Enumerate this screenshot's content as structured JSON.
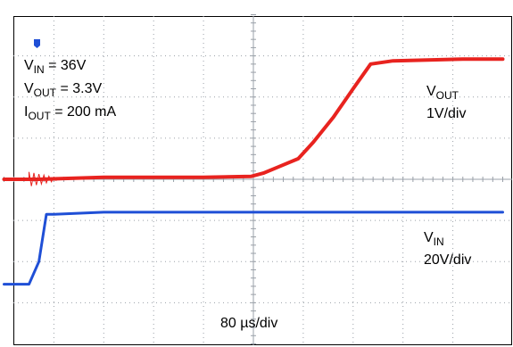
{
  "conditions": {
    "vin": {
      "sym": "V",
      "sub": "IN",
      "rest": " = 36V"
    },
    "vout": {
      "sym": "V",
      "sub": "OUT",
      "rest": " = 3.3V"
    },
    "iout": {
      "sym": "I",
      "sub": "OUT",
      "rest": " = 200 mA"
    }
  },
  "channels": {
    "vout": {
      "sym": "V",
      "sub": "OUT",
      "scale": "1V/div"
    },
    "vin": {
      "sym": "V",
      "sub": "IN",
      "scale": "20V/div"
    }
  },
  "timebase": "80 µs/div",
  "chart_data": {
    "type": "line",
    "grid": true,
    "x_unit": "div",
    "xlim": [
      -5,
      5
    ],
    "y_unit": "div",
    "ylim": [
      -4,
      4
    ],
    "series": [
      {
        "name": "VOUT",
        "color": "#e8231f",
        "scale": "1V/div",
        "x": [
          -5.0,
          -4.3,
          -3.0,
          -1.0,
          -0.05,
          0.2,
          0.5,
          0.9,
          1.2,
          1.6,
          2.0,
          2.35,
          2.8,
          3.5,
          4.2,
          5.0
        ],
        "y": [
          0.0,
          0.0,
          0.05,
          0.05,
          0.07,
          0.15,
          0.3,
          0.5,
          0.9,
          1.5,
          2.2,
          2.8,
          2.88,
          2.9,
          2.92,
          2.92
        ]
      },
      {
        "name": "VIN",
        "color": "#1f4fd6",
        "scale": "20V/div",
        "x": [
          -5.0,
          -4.5,
          -4.3,
          -4.15,
          -4.0,
          -3.0,
          -1.0,
          1.0,
          3.0,
          5.0
        ],
        "y": [
          -2.55,
          -2.55,
          -2.0,
          -0.85,
          -0.85,
          -0.8,
          -0.8,
          -0.8,
          -0.8,
          -0.8
        ]
      }
    ]
  }
}
